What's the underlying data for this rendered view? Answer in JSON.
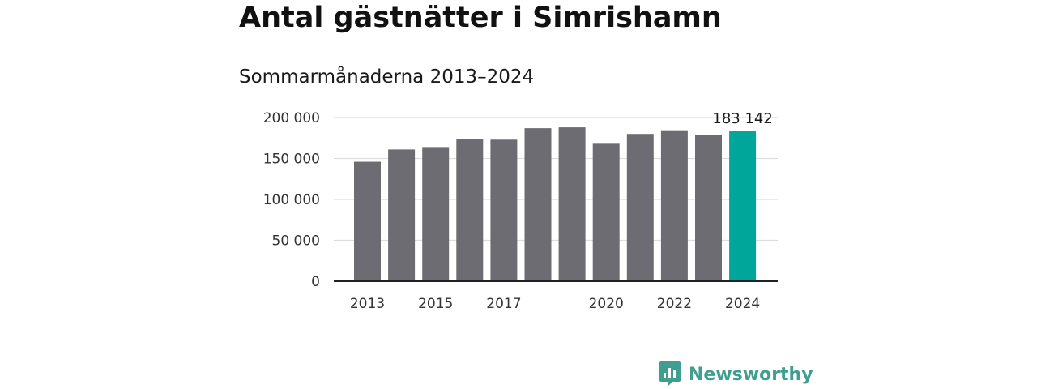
{
  "title": "Antal gästnätter i Simrishamn",
  "subtitle": "Sommarmånaderna 2013–2024",
  "brand": {
    "name": "Newsworthy",
    "icon": "newsworthy-logo-icon",
    "color": "#3f9e8f"
  },
  "colors": {
    "bar": "#6d6c73",
    "highlight": "#00a699",
    "grid": "#dddddd",
    "axis": "#222222"
  },
  "chart_data": {
    "type": "bar",
    "categories": [
      "2013",
      "2014",
      "2015",
      "2016",
      "2017",
      "2018",
      "2019",
      "2020",
      "2021",
      "2022",
      "2023",
      "2024"
    ],
    "x_tick_labels": [
      "2013",
      "",
      "2015",
      "",
      "2017",
      "",
      "",
      "2020",
      "",
      "2022",
      "",
      "2024"
    ],
    "values": [
      146000,
      161000,
      163000,
      174000,
      173000,
      187000,
      188000,
      168000,
      180000,
      183500,
      179000,
      183142
    ],
    "highlight_index": 11,
    "data_labels": [
      {
        "index": 11,
        "text": "183 142"
      }
    ],
    "y_ticks": [
      0,
      50000,
      100000,
      150000,
      200000
    ],
    "y_tick_labels": [
      "0",
      "50 000",
      "100 000",
      "150 000",
      "200 000"
    ],
    "ylim": [
      0,
      200000
    ],
    "grid": true,
    "legend": "none"
  }
}
